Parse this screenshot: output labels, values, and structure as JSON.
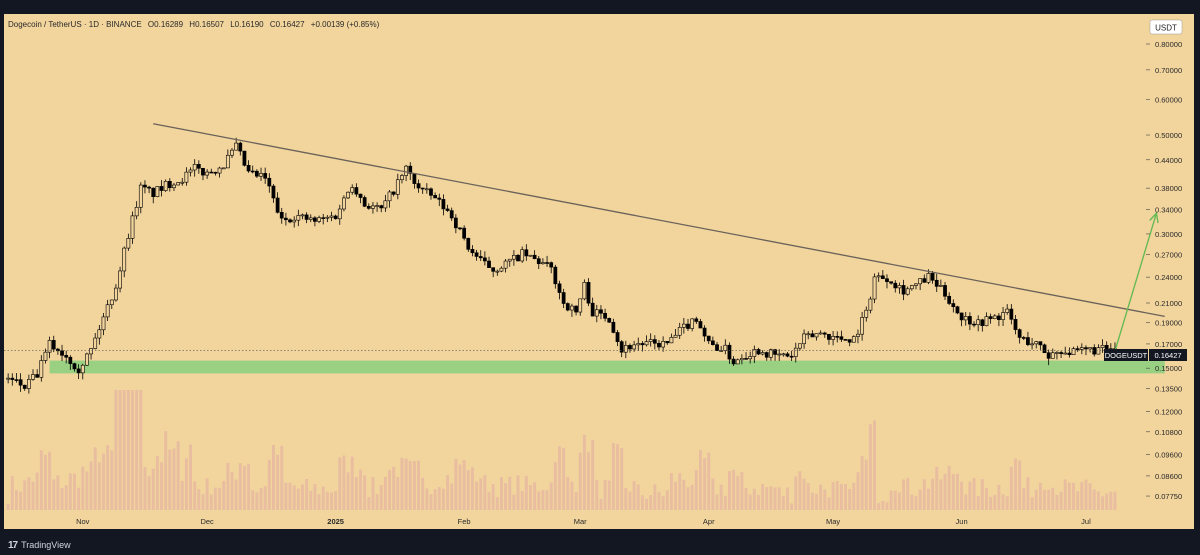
{
  "header": {
    "symbol": "Dogecoin / TetherUS · 1D · BINANCE",
    "open": "O0.16289",
    "high": "H0.16507",
    "low": "L0.16190",
    "close": "C0.16427",
    "change": "+0.00139 (+0.85%)"
  },
  "currency_badge": "USDT",
  "price_tag": {
    "symbol": "DOGEUSDT",
    "value": "0.16427"
  },
  "footer": {
    "logo": "17",
    "brand": "TradingView"
  },
  "colors": {
    "background": "#f2d49d",
    "frame": "#131722",
    "candle": "#000000",
    "trendline": "#6a625a",
    "support_zone": "#8fcf7f",
    "arrow": "#66bb55",
    "volume": "#e8b8a0"
  },
  "chart_data": {
    "type": "candlestick",
    "y_scale": "log",
    "ylim": [
      0.074,
      0.86
    ],
    "y_ticks": [
      "0.80000",
      "0.70000",
      "0.60000",
      "0.50000",
      "0.44000",
      "0.38000",
      "0.34000",
      "0.30000",
      "0.27000",
      "0.24000",
      "0.21000",
      "0.19000",
      "0.17000",
      "0.15000",
      "0.13500",
      "0.12000",
      "0.10800",
      "0.09600",
      "0.08600",
      "0.07750"
    ],
    "x_ticks": [
      {
        "label": "Nov",
        "date": "2024-11-01"
      },
      {
        "label": "Dec",
        "date": "2024-12-01"
      },
      {
        "label": "2025",
        "date": "2025-01-01"
      },
      {
        "label": "Feb",
        "date": "2025-02-01"
      },
      {
        "label": "Mar",
        "date": "2025-03-01"
      },
      {
        "label": "Apr",
        "date": "2025-04-01"
      },
      {
        "label": "May",
        "date": "2025-05-01"
      },
      {
        "label": "Jun",
        "date": "2025-06-01"
      },
      {
        "label": "Jul",
        "date": "2025-07-01"
      }
    ],
    "date_range": [
      "2024-10-13",
      "2025-07-15"
    ],
    "close_path": [
      [
        "2024-10-14",
        0.142
      ],
      [
        "2024-10-18",
        0.136
      ],
      [
        "2024-10-21",
        0.145
      ],
      [
        "2024-10-24",
        0.17
      ],
      [
        "2024-10-28",
        0.16
      ],
      [
        "2024-10-31",
        0.15
      ],
      [
        "2024-11-03",
        0.165
      ],
      [
        "2024-11-06",
        0.195
      ],
      [
        "2024-11-09",
        0.23
      ],
      [
        "2024-11-12",
        0.3
      ],
      [
        "2024-11-15",
        0.38
      ],
      [
        "2024-11-18",
        0.37
      ],
      [
        "2024-11-22",
        0.39
      ],
      [
        "2024-11-25",
        0.4
      ],
      [
        "2024-11-28",
        0.42
      ],
      [
        "2024-12-01",
        0.41
      ],
      [
        "2024-12-05",
        0.43
      ],
      [
        "2024-12-08",
        0.47
      ],
      [
        "2024-12-11",
        0.41
      ],
      [
        "2024-12-15",
        0.4
      ],
      [
        "2024-12-19",
        0.32
      ],
      [
        "2024-12-22",
        0.33
      ],
      [
        "2024-12-27",
        0.32
      ],
      [
        "2025-01-01",
        0.33
      ],
      [
        "2025-01-05",
        0.39
      ],
      [
        "2025-01-08",
        0.35
      ],
      [
        "2025-01-12",
        0.34
      ],
      [
        "2025-01-16",
        0.39
      ],
      [
        "2025-01-18",
        0.42
      ],
      [
        "2025-01-21",
        0.38
      ],
      [
        "2025-01-25",
        0.36
      ],
      [
        "2025-01-29",
        0.33
      ],
      [
        "2025-02-02",
        0.28
      ],
      [
        "2025-02-05",
        0.26
      ],
      [
        "2025-02-08",
        0.25
      ],
      [
        "2025-02-12",
        0.26
      ],
      [
        "2025-02-15",
        0.27
      ],
      [
        "2025-02-19",
        0.26
      ],
      [
        "2025-02-22",
        0.25
      ],
      [
        "2025-02-25",
        0.21
      ],
      [
        "2025-02-28",
        0.2
      ],
      [
        "2025-03-02",
        0.23
      ],
      [
        "2025-03-04",
        0.2
      ],
      [
        "2025-03-08",
        0.195
      ],
      [
        "2025-03-11",
        0.165
      ],
      [
        "2025-03-14",
        0.17
      ],
      [
        "2025-03-18",
        0.17
      ],
      [
        "2025-03-22",
        0.17
      ],
      [
        "2025-03-26",
        0.185
      ],
      [
        "2025-03-29",
        0.195
      ],
      [
        "2025-04-01",
        0.17
      ],
      [
        "2025-04-05",
        0.165
      ],
      [
        "2025-04-07",
        0.155
      ],
      [
        "2025-04-09",
        0.16
      ],
      [
        "2025-04-13",
        0.165
      ],
      [
        "2025-04-17",
        0.16
      ],
      [
        "2025-04-21",
        0.16
      ],
      [
        "2025-04-24",
        0.175
      ],
      [
        "2025-04-28",
        0.18
      ],
      [
        "2025-05-02",
        0.175
      ],
      [
        "2025-05-06",
        0.175
      ],
      [
        "2025-05-09",
        0.2
      ],
      [
        "2025-05-11",
        0.24
      ],
      [
        "2025-05-14",
        0.24
      ],
      [
        "2025-05-18",
        0.225
      ],
      [
        "2025-05-21",
        0.23
      ],
      [
        "2025-05-24",
        0.24
      ],
      [
        "2025-05-28",
        0.22
      ],
      [
        "2025-06-01",
        0.195
      ],
      [
        "2025-06-05",
        0.19
      ],
      [
        "2025-06-09",
        0.195
      ],
      [
        "2025-06-12",
        0.2
      ],
      [
        "2025-06-15",
        0.175
      ],
      [
        "2025-06-19",
        0.17
      ],
      [
        "2025-06-22",
        0.16
      ],
      [
        "2025-06-25",
        0.165
      ],
      [
        "2025-06-28",
        0.162
      ],
      [
        "2025-07-02",
        0.165
      ],
      [
        "2025-07-05",
        0.165
      ],
      [
        "2025-07-08",
        0.164
      ]
    ],
    "annotations": {
      "trendline": [
        [
          "2024-11-18",
          0.53
        ],
        [
          "2025-07-20",
          0.196
        ]
      ],
      "support_zone": {
        "from": "2024-10-24",
        "to": "2025-07-20",
        "low": 0.146,
        "high": 0.156
      },
      "arrow": [
        [
          "2025-07-08",
          0.164
        ],
        [
          "2025-07-18",
          0.334
        ]
      ],
      "last_price_line": 0.16427
    }
  }
}
